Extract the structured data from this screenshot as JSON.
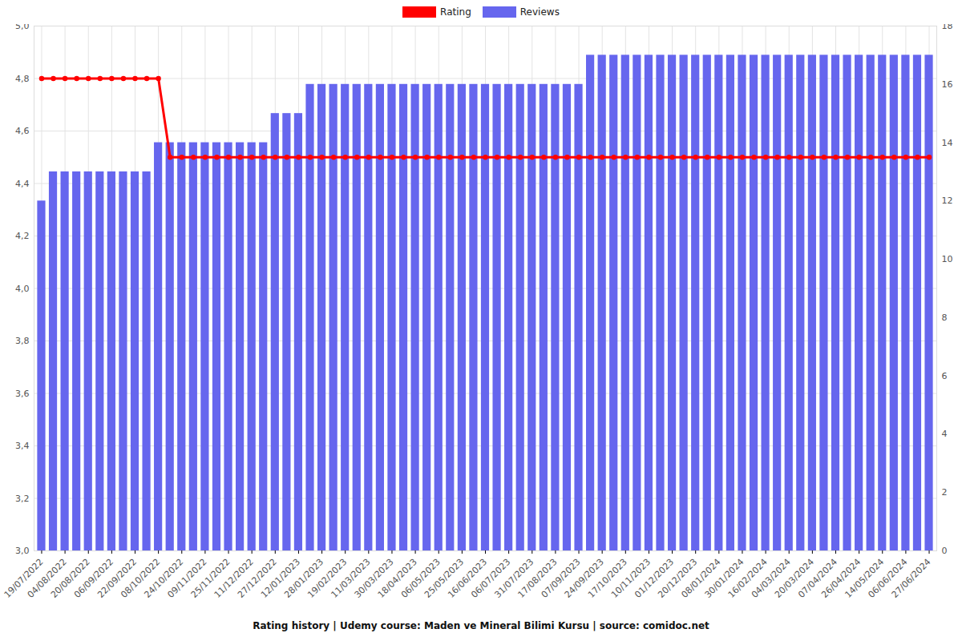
{
  "chart_data": {
    "type": "bar",
    "title": "Rating history | Udemy course: Maden ve Mineral Bilimi Kursu | source: comidoc.net",
    "categories": [
      "19/07/2022",
      null,
      "04/08/2022",
      null,
      "20/08/2022",
      null,
      "06/09/2022",
      null,
      "22/09/2022",
      null,
      "08/10/2022",
      null,
      "24/10/2022",
      null,
      "09/11/2022",
      null,
      "25/11/2022",
      null,
      "11/12/2022",
      null,
      "27/12/2022",
      null,
      "12/01/2023",
      null,
      "28/01/2023",
      null,
      "19/02/2023",
      null,
      "11/03/2023",
      null,
      "30/03/2023",
      null,
      "18/04/2023",
      null,
      "06/05/2023",
      null,
      "25/05/2023",
      null,
      "16/06/2023",
      null,
      "06/07/2023",
      null,
      "31/07/2023",
      null,
      "17/08/2023",
      null,
      "07/09/2023",
      null,
      "24/09/2023",
      null,
      "17/10/2023",
      null,
      "10/11/2023",
      null,
      "01/12/2023",
      null,
      "20/12/2023",
      null,
      "08/01/2024",
      null,
      "30/01/2024",
      null,
      "16/02/2024",
      null,
      "04/03/2024",
      null,
      "20/03/2024",
      null,
      "07/04/2024",
      null,
      "26/04/2024",
      null,
      "14/05/2024",
      null,
      "06/06/2024",
      null,
      "27/06/2024"
    ],
    "series": [
      {
        "name": "Rating",
        "type": "line",
        "color": "#ff0000",
        "marker": "circle",
        "values": [
          4.8,
          4.8,
          4.8,
          4.8,
          4.8,
          4.8,
          4.8,
          4.8,
          4.8,
          4.8,
          4.8,
          4.5,
          4.5,
          4.5,
          4.5,
          4.5,
          4.5,
          4.5,
          4.5,
          4.5,
          4.5,
          4.5,
          4.5,
          4.5,
          4.5,
          4.5,
          4.5,
          4.5,
          4.5,
          4.5,
          4.5,
          4.5,
          4.5,
          4.5,
          4.5,
          4.5,
          4.5,
          4.5,
          4.5,
          4.5,
          4.5,
          4.5,
          4.5,
          4.5,
          4.5,
          4.5,
          4.5,
          4.5,
          4.5,
          4.5,
          4.5,
          4.5,
          4.5,
          4.5,
          4.5,
          4.5,
          4.5,
          4.5,
          4.5,
          4.5,
          4.5,
          4.5,
          4.5,
          4.5,
          4.5,
          4.5,
          4.5,
          4.5,
          4.5,
          4.5,
          4.5,
          4.5,
          4.5,
          4.5,
          4.5,
          4.5,
          4.5
        ]
      },
      {
        "name": "Reviews",
        "type": "bar",
        "color": "#6666ee",
        "axis": "y2",
        "values": [
          12,
          13,
          13,
          13,
          13,
          13,
          13,
          13,
          13,
          13,
          14,
          14,
          14,
          14,
          14,
          14,
          14,
          14,
          14,
          14,
          15,
          15,
          15,
          16,
          16,
          16,
          16,
          16,
          16,
          16,
          16,
          16,
          16,
          16,
          16,
          16,
          16,
          16,
          16,
          16,
          16,
          16,
          16,
          16,
          16,
          16,
          16,
          17,
          17,
          17,
          17,
          17,
          17,
          17,
          17,
          17,
          17,
          17,
          17,
          17,
          17,
          17,
          17,
          17,
          17,
          17,
          17,
          17,
          17,
          17,
          17,
          17,
          17,
          17,
          17,
          17,
          17
        ]
      }
    ],
    "ylim": [
      3.0,
      5.0
    ],
    "yticks": [
      {
        "value": 3.0,
        "label": "3,0"
      },
      {
        "value": 3.2,
        "label": "3,2"
      },
      {
        "value": 3.4,
        "label": "3,4"
      },
      {
        "value": 3.6,
        "label": "3,6"
      },
      {
        "value": 3.8,
        "label": "3,8"
      },
      {
        "value": 4.0,
        "label": "4,0"
      },
      {
        "value": 4.2,
        "label": "4,2"
      },
      {
        "value": 4.4,
        "label": "4,4"
      },
      {
        "value": 4.6,
        "label": "4,6"
      },
      {
        "value": 4.8,
        "label": "4,8"
      },
      {
        "value": 5.0,
        "label": "5,0"
      }
    ],
    "y2lim": [
      0,
      18
    ],
    "y2ticks": [
      0,
      2,
      4,
      6,
      8,
      10,
      12,
      14,
      16,
      18
    ],
    "grid": true,
    "legend": "top"
  }
}
